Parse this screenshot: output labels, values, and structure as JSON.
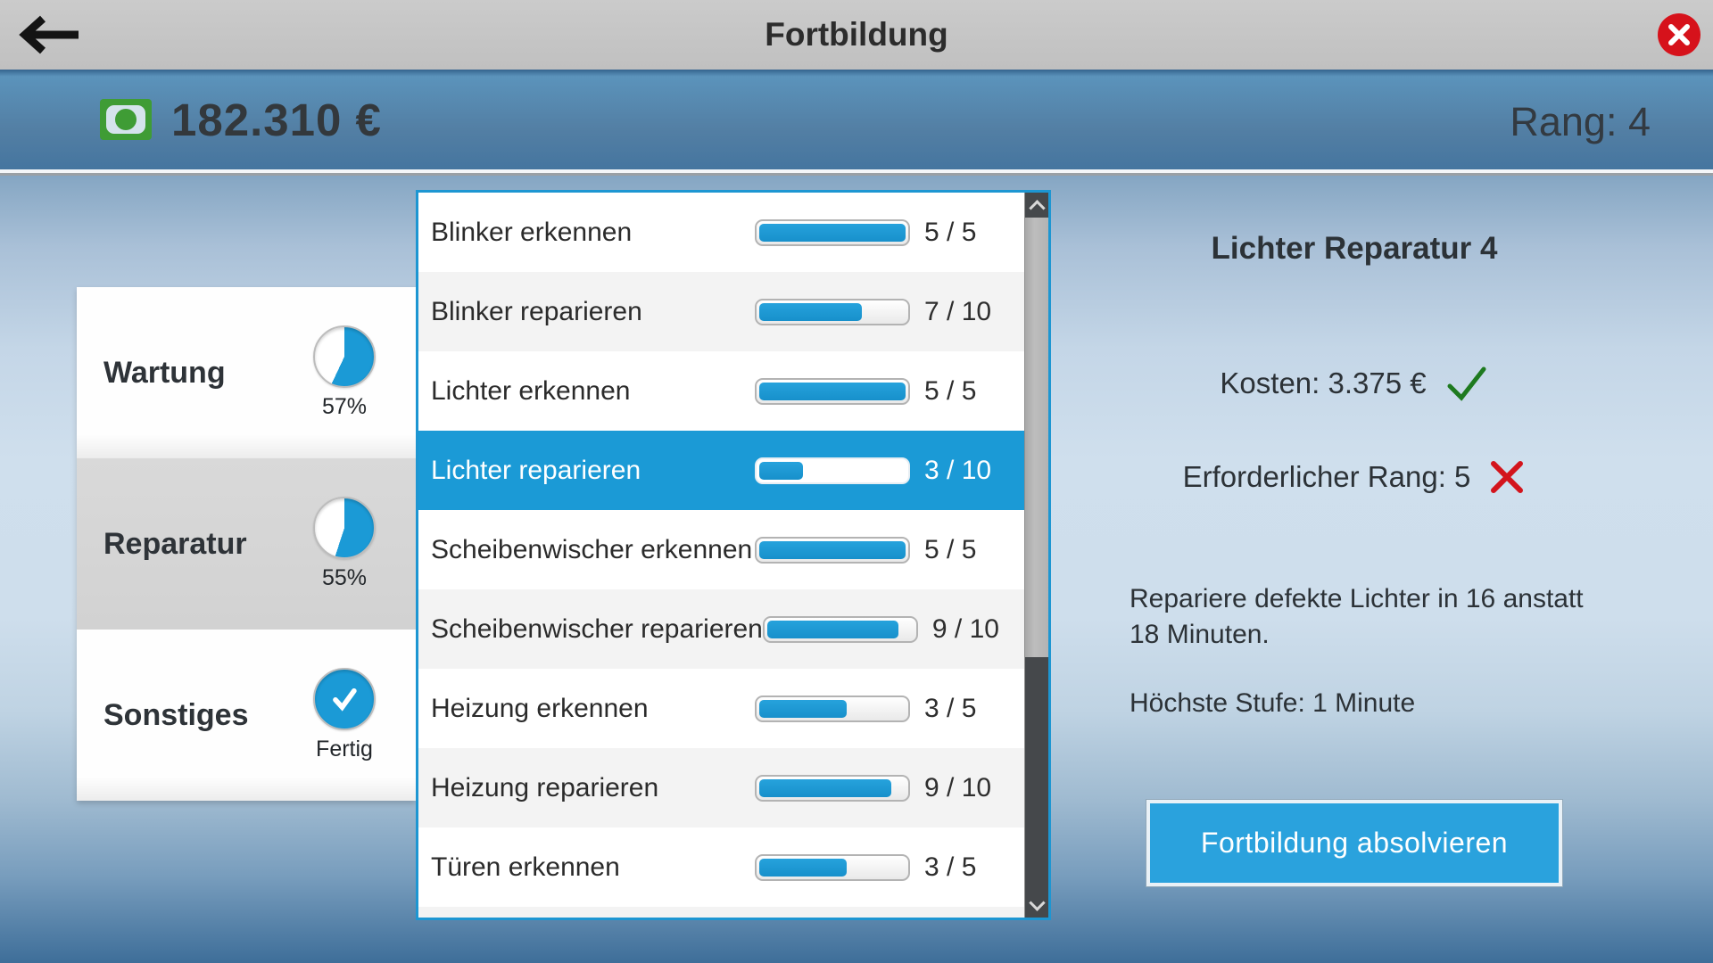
{
  "titlebar": {
    "title": "Fortbildung"
  },
  "statusbar": {
    "money": "182.310 €",
    "rank": "Rang: 4"
  },
  "categories": [
    {
      "label": "Wartung",
      "percent": 57,
      "progress_label": "57%",
      "state": "normal"
    },
    {
      "label": "Reparatur",
      "percent": 55,
      "progress_label": "55%",
      "state": "active"
    },
    {
      "label": "Sonstiges",
      "percent": 100,
      "progress_label": "Fertig",
      "state": "done"
    }
  ],
  "skills": [
    {
      "name": "Blinker erkennen",
      "value": 5,
      "max": 5,
      "count_label": "5 / 5",
      "selected": false
    },
    {
      "name": "Blinker reparieren",
      "value": 7,
      "max": 10,
      "count_label": "7 / 10",
      "selected": false
    },
    {
      "name": "Lichter erkennen",
      "value": 5,
      "max": 5,
      "count_label": "5 / 5",
      "selected": false
    },
    {
      "name": "Lichter reparieren",
      "value": 3,
      "max": 10,
      "count_label": "3 / 10",
      "selected": true
    },
    {
      "name": "Scheibenwischer erkennen",
      "value": 5,
      "max": 5,
      "count_label": "5 / 5",
      "selected": false
    },
    {
      "name": "Scheibenwischer reparieren",
      "value": 9,
      "max": 10,
      "count_label": "9 / 10",
      "selected": false
    },
    {
      "name": "Heizung erkennen",
      "value": 3,
      "max": 5,
      "count_label": "3 / 5",
      "selected": false
    },
    {
      "name": "Heizung reparieren",
      "value": 9,
      "max": 10,
      "count_label": "9 / 10",
      "selected": false
    },
    {
      "name": "Türen erkennen",
      "value": 3,
      "max": 5,
      "count_label": "3 / 5",
      "selected": false
    }
  ],
  "detail": {
    "title": "Lichter Reparatur 4",
    "cost_label": "Kosten: 3.375 €",
    "cost_ok": true,
    "rank_label": "Erforderlicher Rang: 5",
    "rank_ok": false,
    "description": "Repariere defekte Lichter in 16 anstatt 18 Minuten.",
    "max_level_label": "Höchste Stufe: 1 Minute",
    "button_label": "Fortbildung absolvieren"
  },
  "colors": {
    "accent_blue": "#1b9ad6",
    "button_blue": "#2aa2dd",
    "money_green": "#3f9c35",
    "check_green": "#1e7a1f",
    "cross_red": "#d3141c",
    "close_red": "#d6121b"
  }
}
